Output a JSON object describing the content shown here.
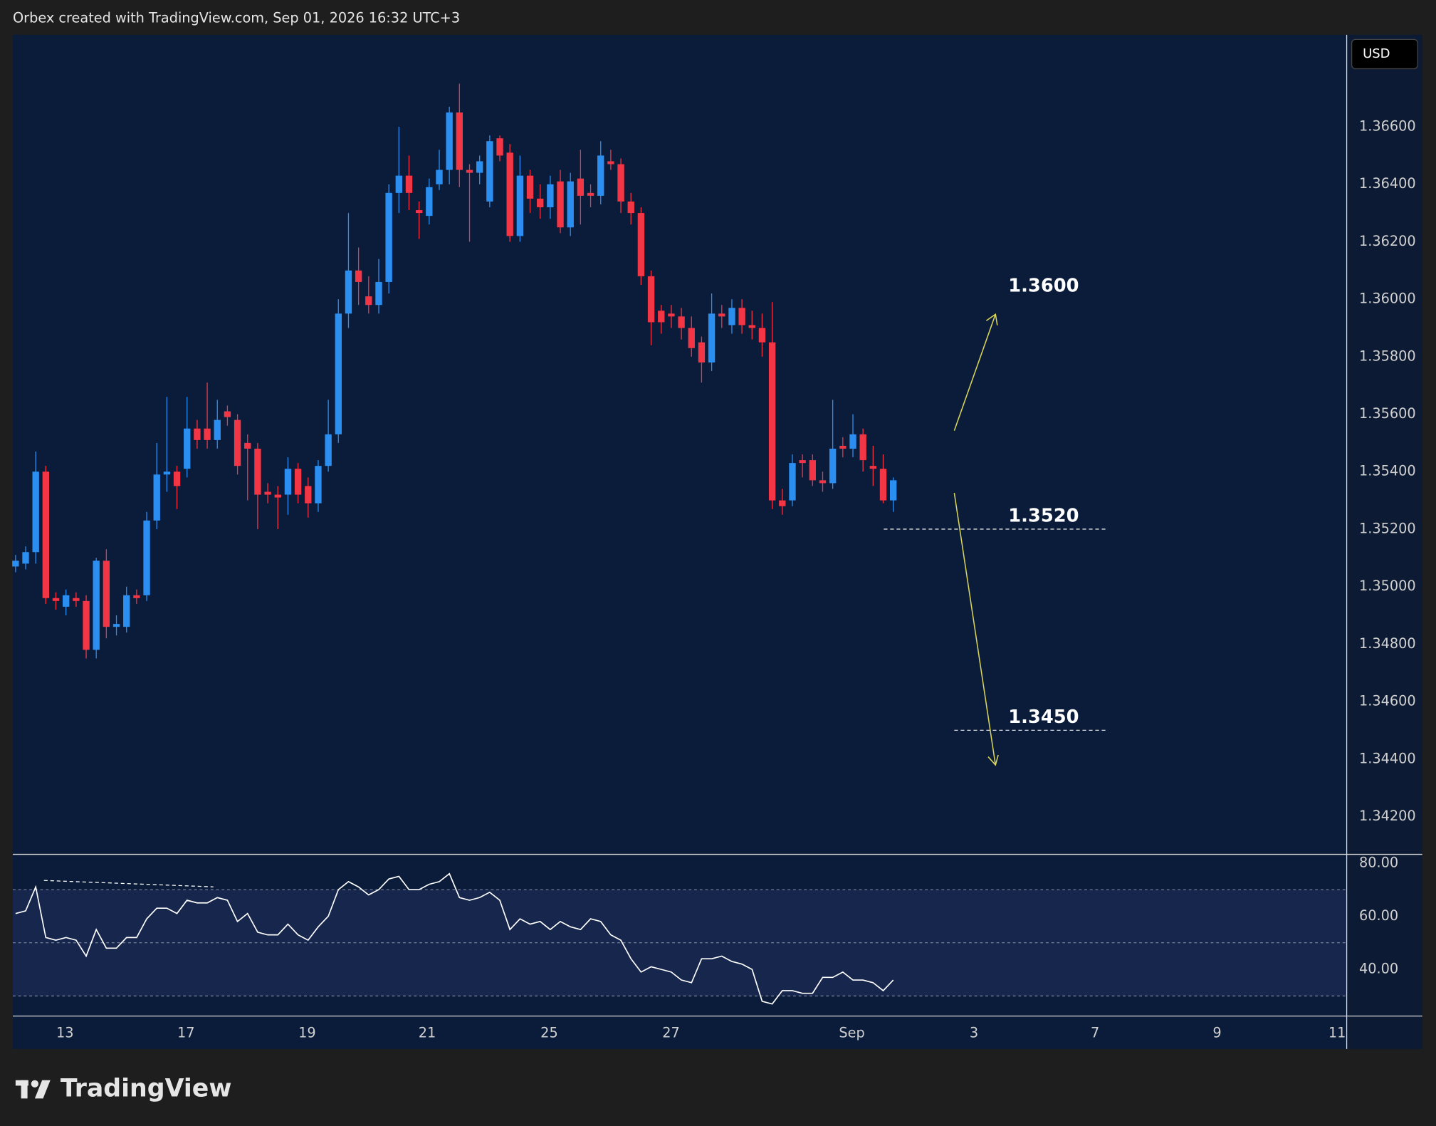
{
  "header": "Orbex created with TradingView.com, Sep 01, 2026 16:32 UTC+3",
  "currency": "USD",
  "brand": "TradingView",
  "chart_data": {
    "type": "candlestick",
    "open": [
      1.3507,
      1.3508,
      1.3512,
      1.354,
      1.3496,
      1.3493,
      1.3496,
      1.3495,
      1.3478,
      1.3509,
      1.3486,
      1.3486,
      1.3497,
      1.3497,
      1.3523,
      1.3539,
      1.354,
      1.3541,
      1.3555,
      1.3555,
      1.3551,
      1.3561,
      1.3558,
      1.355,
      1.3548,
      1.3533,
      1.3532,
      1.3532,
      1.3541,
      1.3535,
      1.3529,
      1.3542,
      1.3553,
      1.3595,
      1.361,
      1.3601,
      1.3598,
      1.3606,
      1.3637,
      1.3643,
      1.3631,
      1.3629,
      1.364,
      1.3645,
      1.3665,
      1.3645,
      1.3644,
      1.3634,
      1.3656,
      1.3651,
      1.3622,
      1.3643,
      1.3635,
      1.3632,
      1.3641,
      1.3625,
      1.3642,
      1.3637,
      1.3636,
      1.3648,
      1.3647,
      1.3634,
      1.363,
      1.3608,
      1.3596,
      1.3595,
      1.3594,
      1.359,
      1.3585,
      1.3578,
      1.3595,
      1.3591,
      1.3597,
      1.3591,
      1.359,
      1.3585,
      1.353,
      1.353,
      1.3544,
      1.3544,
      1.3537,
      1.3536,
      1.3549,
      1.3548,
      1.3553,
      1.3542,
      1.3541,
      1.353
    ],
    "high": [
      1.3511,
      1.3514,
      1.3547,
      1.3542,
      1.3498,
      1.3499,
      1.3498,
      1.3497,
      1.351,
      1.3513,
      1.349,
      1.35,
      1.3499,
      1.3526,
      1.355,
      1.3566,
      1.3542,
      1.3566,
      1.3558,
      1.3571,
      1.3565,
      1.3563,
      1.356,
      1.3553,
      1.355,
      1.3536,
      1.3535,
      1.3545,
      1.3543,
      1.3538,
      1.3544,
      1.3565,
      1.36,
      1.363,
      1.3618,
      1.3608,
      1.3614,
      1.364,
      1.366,
      1.365,
      1.3634,
      1.3642,
      1.3652,
      1.3667,
      1.3675,
      1.3647,
      1.365,
      1.3657,
      1.3657,
      1.3654,
      1.365,
      1.3645,
      1.364,
      1.3643,
      1.3645,
      1.3644,
      1.3652,
      1.364,
      1.3655,
      1.3652,
      1.3649,
      1.3637,
      1.3632,
      1.361,
      1.3598,
      1.3598,
      1.3597,
      1.3594,
      1.3587,
      1.3602,
      1.3598,
      1.36,
      1.36,
      1.3596,
      1.3595,
      1.3599,
      1.3534,
      1.3546,
      1.3546,
      1.3546,
      1.354,
      1.3565,
      1.3552,
      1.356,
      1.3555,
      1.3549,
      1.3546,
      1.3538
    ],
    "low": [
      1.3505,
      1.3506,
      1.3508,
      1.3494,
      1.3492,
      1.349,
      1.3493,
      1.3475,
      1.3475,
      1.3482,
      1.3483,
      1.3484,
      1.3494,
      1.3495,
      1.352,
      1.3533,
      1.3527,
      1.3538,
      1.3548,
      1.3548,
      1.3548,
      1.3556,
      1.3539,
      1.353,
      1.352,
      1.3529,
      1.352,
      1.3525,
      1.3529,
      1.3524,
      1.3526,
      1.354,
      1.355,
      1.359,
      1.3598,
      1.3595,
      1.3595,
      1.3602,
      1.363,
      1.3631,
      1.3621,
      1.3626,
      1.3638,
      1.364,
      1.3639,
      1.362,
      1.364,
      1.3632,
      1.3648,
      1.362,
      1.362,
      1.363,
      1.3628,
      1.3628,
      1.3623,
      1.3622,
      1.3626,
      1.3632,
      1.3633,
      1.3645,
      1.363,
      1.3626,
      1.3605,
      1.3584,
      1.3588,
      1.359,
      1.3586,
      1.358,
      1.3571,
      1.3575,
      1.359,
      1.3588,
      1.3588,
      1.3586,
      1.358,
      1.3527,
      1.3525,
      1.3528,
      1.3538,
      1.3535,
      1.3533,
      1.3534,
      1.3545,
      1.3545,
      1.354,
      1.3535,
      1.3529,
      1.3526
    ],
    "close": [
      1.3509,
      1.3512,
      1.354,
      1.3496,
      1.3495,
      1.3497,
      1.3495,
      1.3478,
      1.3509,
      1.3486,
      1.3487,
      1.3497,
      1.3496,
      1.3523,
      1.3539,
      1.354,
      1.3535,
      1.3555,
      1.3551,
      1.3551,
      1.3558,
      1.3559,
      1.3542,
      1.3548,
      1.3532,
      1.3532,
      1.3531,
      1.3541,
      1.3532,
      1.3529,
      1.3542,
      1.3553,
      1.3595,
      1.361,
      1.3606,
      1.3598,
      1.3606,
      1.3637,
      1.3643,
      1.3637,
      1.363,
      1.3639,
      1.3645,
      1.3665,
      1.3645,
      1.3644,
      1.3648,
      1.3655,
      1.365,
      1.3622,
      1.3643,
      1.3635,
      1.3632,
      1.364,
      1.3625,
      1.3641,
      1.3636,
      1.3636,
      1.365,
      1.3647,
      1.3634,
      1.363,
      1.3608,
      1.3592,
      1.3592,
      1.3594,
      1.359,
      1.3583,
      1.3578,
      1.3595,
      1.3594,
      1.3597,
      1.3591,
      1.359,
      1.3585,
      1.353,
      1.3528,
      1.3543,
      1.3543,
      1.3537,
      1.3536,
      1.3548,
      1.3548,
      1.3553,
      1.3544,
      1.3541,
      1.353,
      1.3537
    ],
    "up_color": "#2b8ff2",
    "down_color": "#f23645",
    "xlim": [
      -0.27,
      131.9
    ],
    "xticks": [
      {
        "value": 4.9,
        "label": "13"
      },
      {
        "value": 16.9,
        "label": "17"
      },
      {
        "value": 28.9,
        "label": "19"
      },
      {
        "value": 40.8,
        "label": "21"
      },
      {
        "value": 52.9,
        "label": "25"
      },
      {
        "value": 64.97,
        "label": "27"
      },
      {
        "value": 82.9,
        "label": "Sep"
      },
      {
        "value": 95.0,
        "label": "3"
      },
      {
        "value": 107.0,
        "label": "7"
      },
      {
        "value": 119.1,
        "label": "9"
      },
      {
        "value": 131.0,
        "label": "11"
      }
    ],
    "ylim": [
      1.3407,
      1.3692
    ],
    "yticks": [
      {
        "value": 1.366,
        "label": "1.36600"
      },
      {
        "value": 1.364,
        "label": "1.36400"
      },
      {
        "value": 1.362,
        "label": "1.36200"
      },
      {
        "value": 1.36,
        "label": "1.36000"
      },
      {
        "value": 1.358,
        "label": "1.35800"
      },
      {
        "value": 1.356,
        "label": "1.35600"
      },
      {
        "value": 1.354,
        "label": "1.35400"
      },
      {
        "value": 1.352,
        "label": "1.35200"
      },
      {
        "value": 1.35,
        "label": "1.35000"
      },
      {
        "value": 1.348,
        "label": "1.34800"
      },
      {
        "value": 1.346,
        "label": "1.34600"
      },
      {
        "value": 1.344,
        "label": "1.34400"
      },
      {
        "value": 1.342,
        "label": "1.34200"
      }
    ],
    "annotations": [
      {
        "value": 1.36,
        "label": "1.3600"
      },
      {
        "value": 1.352,
        "label": "1.3520",
        "dashed": true
      },
      {
        "value": 1.345,
        "label": "1.3450",
        "dashed": true
      }
    ],
    "rsi": {
      "values": [
        61,
        62,
        71,
        52,
        51,
        52,
        51,
        45,
        55,
        48,
        48,
        52,
        52,
        59,
        63,
        63,
        61,
        66,
        65,
        65,
        67,
        66,
        58,
        61,
        54,
        53,
        53,
        57,
        53,
        51,
        56,
        60,
        70,
        73,
        71,
        68,
        70,
        74,
        75,
        70,
        70,
        72,
        73,
        76,
        67,
        66,
        67,
        69,
        66,
        55,
        59,
        57,
        58,
        55,
        58,
        56,
        55,
        59,
        58,
        53,
        51,
        44,
        39,
        41,
        40,
        39,
        36,
        35,
        44,
        44,
        45,
        43,
        42,
        40,
        28,
        27,
        32,
        32,
        31,
        31,
        37,
        37,
        39,
        36,
        36,
        35,
        32,
        36
      ],
      "color": "#ffffff",
      "ylim": [
        22.8,
        83.1
      ],
      "yticks": [
        {
          "value": 80,
          "label": "80.00"
        },
        {
          "value": 60,
          "label": "60.00"
        },
        {
          "value": 40,
          "label": "40.00"
        }
      ],
      "levels": [
        70,
        50,
        30
      ]
    }
  }
}
